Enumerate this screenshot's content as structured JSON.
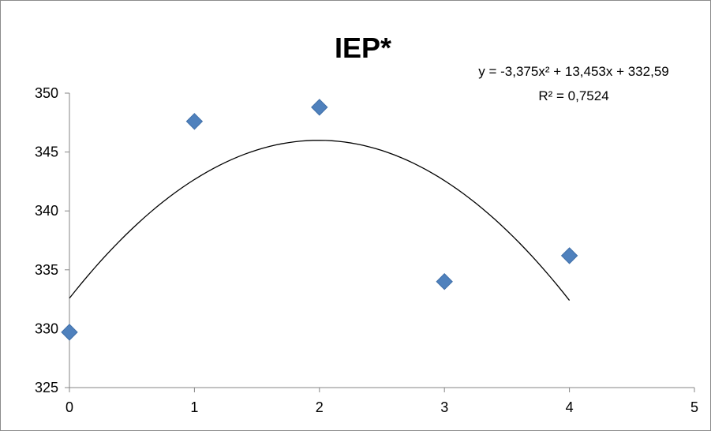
{
  "chart_data": {
    "type": "scatter",
    "title": "IEP*",
    "xlabel": "",
    "ylabel": "",
    "xlim": [
      0,
      5
    ],
    "ylim": [
      325,
      350
    ],
    "x_ticks": [
      0,
      1,
      2,
      3,
      4,
      5
    ],
    "y_ticks": [
      325,
      330,
      335,
      340,
      345,
      350
    ],
    "x_tick_labels": [
      "0",
      "1",
      "2",
      "3",
      "4",
      "5"
    ],
    "y_tick_labels": [
      "325",
      "330",
      "335",
      "340",
      "345",
      "350"
    ],
    "grid": false,
    "legend": "none",
    "series": [
      {
        "marker": "diamond",
        "color": "#4f81bd",
        "x": [
          0,
          1,
          2,
          3,
          4
        ],
        "y": [
          329.7,
          347.6,
          348.8,
          334.0,
          336.2
        ]
      }
    ],
    "trendline": {
      "type": "polynomial-2",
      "coefficients": [
        -3.375,
        13.453,
        332.59
      ],
      "x_range": [
        0,
        4
      ],
      "color": "#000000",
      "equation": "y = -3,375x² + 13,453x + 332,59",
      "r_squared": "R² = 0,7524"
    }
  }
}
